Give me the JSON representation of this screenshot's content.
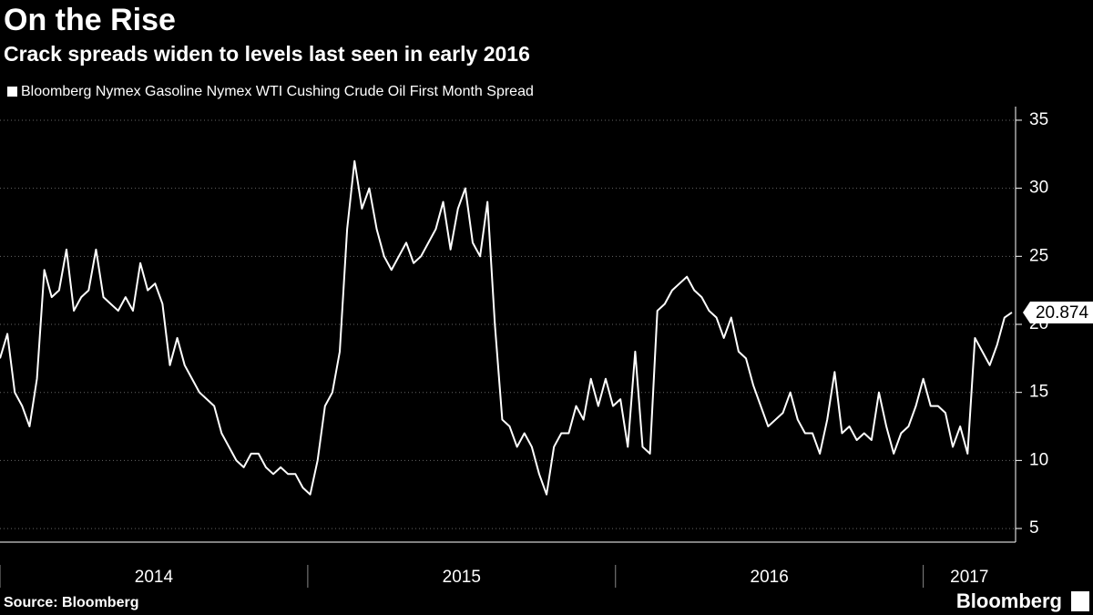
{
  "chart_data": {
    "type": "line",
    "title": "On the Rise",
    "subtitle": "Crack spreads widen to levels last seen in early 2016",
    "source": "Source: Bloomberg",
    "brand": "Bloomberg",
    "x": [
      2014,
      2014.024,
      2014.048,
      2014.072,
      2014.096,
      2014.12,
      2014.144,
      2014.168,
      2014.192,
      2014.216,
      2014.24,
      2014.264,
      2014.288,
      2014.312,
      2014.336,
      2014.36,
      2014.384,
      2014.408,
      2014.432,
      2014.456,
      2014.48,
      2014.504,
      2014.528,
      2014.552,
      2014.576,
      2014.6,
      2014.624,
      2014.648,
      2014.672,
      2014.696,
      2014.72,
      2014.744,
      2014.768,
      2014.792,
      2014.816,
      2014.84,
      2014.864,
      2014.888,
      2014.912,
      2014.936,
      2014.96,
      2014.984,
      2015.008,
      2015.032,
      2015.056,
      2015.08,
      2015.104,
      2015.128,
      2015.152,
      2015.176,
      2015.2,
      2015.224,
      2015.248,
      2015.272,
      2015.296,
      2015.32,
      2015.344,
      2015.368,
      2015.392,
      2015.416,
      2015.44,
      2015.464,
      2015.488,
      2015.512,
      2015.536,
      2015.56,
      2015.584,
      2015.608,
      2015.632,
      2015.656,
      2015.68,
      2015.704,
      2015.728,
      2015.752,
      2015.776,
      2015.8,
      2015.824,
      2015.848,
      2015.872,
      2015.896,
      2015.92,
      2015.944,
      2015.968,
      2015.992,
      2016.016,
      2016.04,
      2016.064,
      2016.088,
      2016.112,
      2016.136,
      2016.16,
      2016.184,
      2016.208,
      2016.232,
      2016.256,
      2016.28,
      2016.304,
      2016.328,
      2016.352,
      2016.376,
      2016.4,
      2016.424,
      2016.448,
      2016.472,
      2016.496,
      2016.52,
      2016.544,
      2016.568,
      2016.592,
      2016.616,
      2016.64,
      2016.664,
      2016.688,
      2016.712,
      2016.736,
      2016.76,
      2016.784,
      2016.808,
      2016.832,
      2016.856,
      2016.88,
      2016.904,
      2016.928,
      2016.952,
      2016.976,
      2017,
      2017.024,
      2017.048,
      2017.072,
      2017.096,
      2017.12,
      2017.144,
      2017.168,
      2017.192,
      2017.216,
      2017.24,
      2017.264,
      2017.288
    ],
    "series": [
      {
        "name": "Bloomberg Nymex Gasoline Nymex WTI Cushing Crude Oil First Month Spread",
        "color": "#ffffff",
        "values": [
          17.5,
          19.3,
          15,
          14,
          12.5,
          16,
          24,
          22,
          22.5,
          25.5,
          21,
          22,
          22.5,
          25.5,
          22,
          21.5,
          21,
          22,
          21,
          24.5,
          22.5,
          23,
          21.5,
          17,
          19,
          17,
          16,
          15,
          14.5,
          14,
          12,
          11,
          10,
          9.5,
          10.5,
          10.5,
          9.5,
          9,
          9.5,
          9,
          9,
          8,
          7.5,
          10,
          14,
          15,
          18,
          27,
          32,
          28.5,
          30,
          27,
          25,
          24,
          25,
          26,
          24.5,
          25,
          26,
          27,
          29,
          25.5,
          28.5,
          30,
          26,
          25,
          29,
          20,
          13,
          12.5,
          11,
          12,
          11,
          9,
          7.5,
          11,
          12,
          12,
          14,
          13,
          16,
          14,
          16,
          14,
          14.5,
          11,
          18,
          11,
          10.5,
          21,
          21.5,
          22.5,
          23,
          23.5,
          22.5,
          22,
          21,
          20.5,
          19,
          20.5,
          18,
          17.5,
          15.5,
          14,
          12.5,
          13,
          13.5,
          15,
          13,
          12,
          12,
          10.5,
          13,
          16.5,
          12,
          12.5,
          11.5,
          12,
          11.5,
          15,
          12.5,
          10.5,
          12,
          12.5,
          14,
          16,
          14,
          14,
          13.5,
          11,
          12.5,
          10.5,
          19,
          18,
          17,
          18.5,
          20.5,
          20.874
        ]
      }
    ],
    "xlim": [
      2014,
      2017.3
    ],
    "xticks": [
      {
        "value": 2014,
        "label": "2014"
      },
      {
        "value": 2015,
        "label": "2015"
      },
      {
        "value": 2016,
        "label": "2016"
      },
      {
        "value": 2017,
        "label": "2017"
      }
    ],
    "ylim": [
      4,
      36
    ],
    "yticks": [
      5,
      10,
      15,
      20,
      25,
      30,
      35
    ],
    "grid": true
  }
}
